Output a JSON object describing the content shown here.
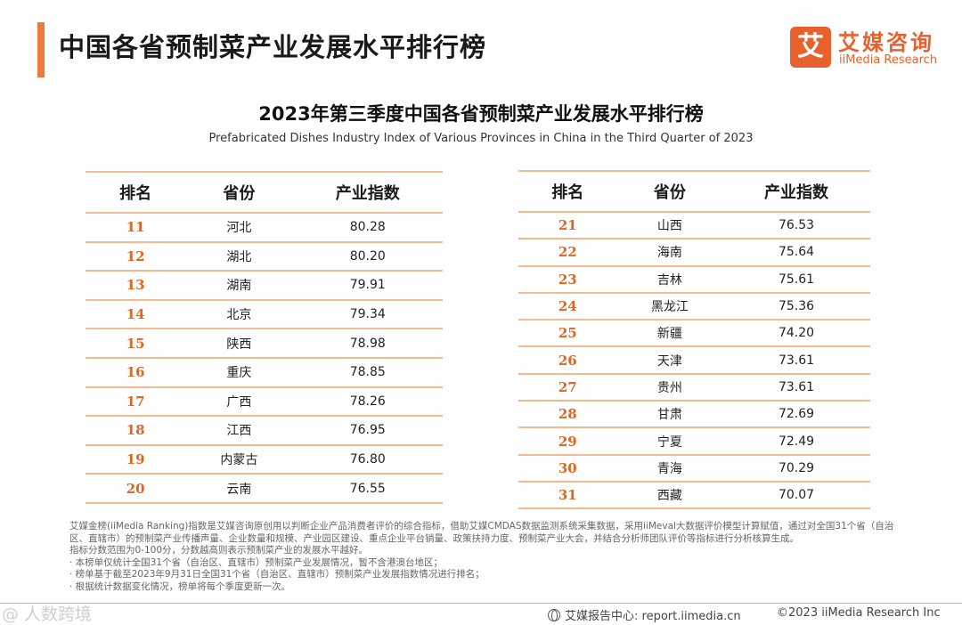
{
  "header": {
    "title": "中国各省预制菜产业发展水平排行榜",
    "logo_mark": "艾",
    "logo_cn": "艾媒咨询",
    "logo_en": "iiMedia Research"
  },
  "subtitle": {
    "cn": "2023年第三季度中国各省预制菜产业发展水平排行榜",
    "en": "Prefabricated Dishes Industry Index of Various Provinces in China in the Third Quarter of 2023"
  },
  "table_headers": {
    "rank": "排名",
    "province": "省份",
    "index": "产业指数"
  },
  "left_rows": [
    {
      "rank": "11",
      "province": "河北",
      "index": "80.28"
    },
    {
      "rank": "12",
      "province": "湖北",
      "index": "80.20"
    },
    {
      "rank": "13",
      "province": "湖南",
      "index": "79.91"
    },
    {
      "rank": "14",
      "province": "北京",
      "index": "79.34"
    },
    {
      "rank": "15",
      "province": "陕西",
      "index": "78.98"
    },
    {
      "rank": "16",
      "province": "重庆",
      "index": "78.85"
    },
    {
      "rank": "17",
      "province": "广西",
      "index": "78.26"
    },
    {
      "rank": "18",
      "province": "江西",
      "index": "76.95"
    },
    {
      "rank": "19",
      "province": "内蒙古",
      "index": "76.80"
    },
    {
      "rank": "20",
      "province": "云南",
      "index": "76.55"
    }
  ],
  "right_rows": [
    {
      "rank": "21",
      "province": "山西",
      "index": "76.53"
    },
    {
      "rank": "22",
      "province": "海南",
      "index": "75.64"
    },
    {
      "rank": "23",
      "province": "吉林",
      "index": "75.61"
    },
    {
      "rank": "24",
      "province": "黑龙江",
      "index": "75.36"
    },
    {
      "rank": "25",
      "province": "新疆",
      "index": "74.20"
    },
    {
      "rank": "26",
      "province": "天津",
      "index": "73.61"
    },
    {
      "rank": "27",
      "province": "贵州",
      "index": "73.61"
    },
    {
      "rank": "28",
      "province": "甘肃",
      "index": "72.69"
    },
    {
      "rank": "29",
      "province": "宁夏",
      "index": "72.49"
    },
    {
      "rank": "30",
      "province": "青海",
      "index": "70.29"
    },
    {
      "rank": "31",
      "province": "西藏",
      "index": "70.07"
    }
  ],
  "notes": [
    "艾媒金榜(iiMedia Ranking)指数是艾媒咨询原创用以判断企业产品消费者评价的综合指标，借助艾媒CMDAS数据监测系统采集数据，采用iiMeval大数据评价模型计算赋值，通过对全国31个省（自治区、直辖市）的预制菜产业传播声量、企业数量和规模、产业园区建设、重点企业平台销量、政策扶持力度、预制菜产业大会，并结合分析师团队评价等指标进行分析核算生成。",
    "指标分数范围为0-100分，分数越高则表示预制菜产业的发展水平越好。",
    "· 本榜单仅统计全国31个省（自治区、直辖市）预制菜产业发展情况，暂不含港澳台地区；",
    "· 榜单基于截至2023年9月31日全国31个省（自治区、直辖市）预制菜产业发展指数情况进行排名；",
    "· 根据统计数据变化情况，榜单将每个季度更新一次。"
  ],
  "footer": {
    "watermark": "@ 人数跨境",
    "center": "艾媒报告中心: report.iimedia.cn",
    "right": "©2023  iiMedia Research  Inc"
  },
  "colors": {
    "accent": "#ee7a3b",
    "brand": "#e8612c",
    "table_line": "#f3b98f",
    "rank_text": "#e1651e"
  },
  "icons": {
    "footer": "globe-icon"
  }
}
